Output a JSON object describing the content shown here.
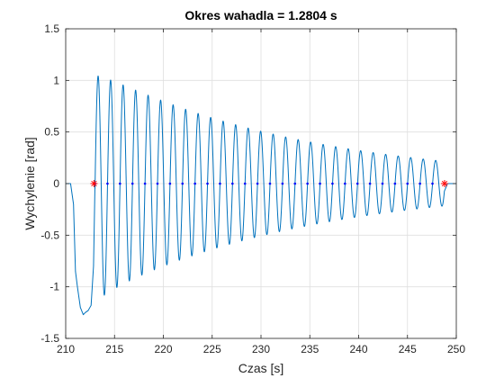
{
  "chart_data": {
    "type": "line",
    "title": "Okres wahadla = 1.2804 s",
    "xlabel": "Czas [s]",
    "ylabel": "Wychylenie [rad]",
    "xlim": [
      210,
      250
    ],
    "ylim": [
      -1.5,
      1.5
    ],
    "xticks": [
      210,
      215,
      220,
      225,
      230,
      235,
      240,
      245,
      250
    ],
    "yticks": [
      -1.5,
      -1,
      -0.5,
      0,
      0.5,
      1,
      1.5
    ],
    "grid": true,
    "series": [
      {
        "color": "#0072BD",
        "style": "line",
        "description_points": "damped oscillation signal",
        "x": [
          210.0,
          210.5,
          210.8,
          211.0,
          211.2,
          211.5,
          211.8,
          212.0,
          212.3,
          212.6,
          212.85,
          213.0
        ],
        "y": [
          0.0,
          0.0,
          -0.2,
          -0.85,
          -1.0,
          -1.2,
          -1.27,
          -1.25,
          -1.23,
          -1.18,
          -0.8,
          0.0
        ]
      },
      {
        "color": "#0000FF",
        "style": "dots",
        "x": [
          213.0,
          214.28,
          215.56,
          216.84,
          218.12,
          219.4,
          220.68,
          221.96,
          223.24,
          224.52,
          225.8,
          227.08,
          228.36,
          229.64,
          230.92,
          232.2,
          233.48,
          234.76,
          236.04,
          237.32,
          238.6,
          239.88,
          241.16,
          242.44,
          243.72,
          245.0,
          246.28,
          247.56
        ],
        "y": [
          0,
          0,
          0,
          0,
          0,
          0,
          0,
          0,
          0,
          0,
          0,
          0,
          0,
          0,
          0,
          0,
          0,
          0,
          0,
          0,
          0,
          0,
          0,
          0,
          0,
          0,
          0,
          0
        ]
      },
      {
        "color": "#FF0000",
        "style": "star",
        "x": [
          212.9,
          248.8
        ],
        "y": [
          0,
          0
        ]
      }
    ],
    "oscillation": {
      "start": 213.0,
      "end": 248.8,
      "period": 1.2804,
      "initial_amplitude": 1.1,
      "decay": 0.0455,
      "offset_start": -0.05
    }
  }
}
